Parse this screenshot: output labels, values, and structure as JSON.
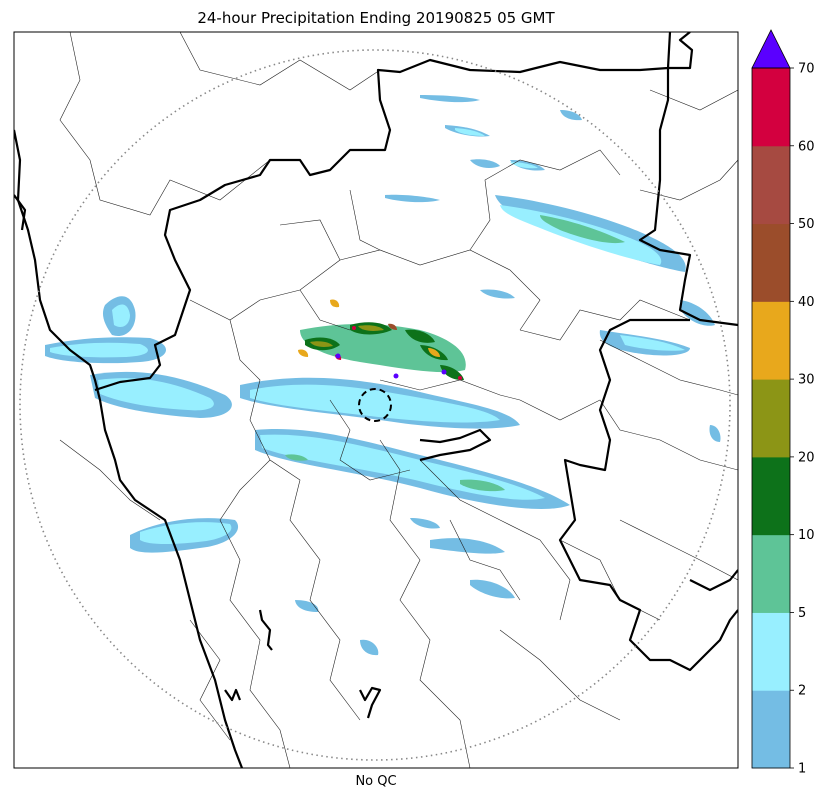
{
  "title": "24-hour Precipitation Ending 20190825 05 GMT",
  "xlabel": "No QC",
  "colorbar": {
    "ticks": [
      "1",
      "2",
      "5",
      "10",
      "20",
      "30",
      "40",
      "50",
      "60",
      "70"
    ],
    "bins": [
      {
        "from": 1,
        "to": 2,
        "color": "#74bde4"
      },
      {
        "from": 2,
        "to": 5,
        "color": "#98efff"
      },
      {
        "from": 5,
        "to": 10,
        "color": "#5ec497"
      },
      {
        "from": 10,
        "to": 20,
        "color": "#0d721a"
      },
      {
        "from": 20,
        "to": 30,
        "color": "#8c9516"
      },
      {
        "from": 30,
        "to": 40,
        "color": "#e8a81c"
      },
      {
        "from": 40,
        "to": 50,
        "color": "#9b4d2b"
      },
      {
        "from": 50,
        "to": 60,
        "color": "#a64a41"
      },
      {
        "from": 60,
        "to": 70,
        "color": "#d3003f"
      }
    ],
    "extend_color": "#5a00ff"
  }
}
